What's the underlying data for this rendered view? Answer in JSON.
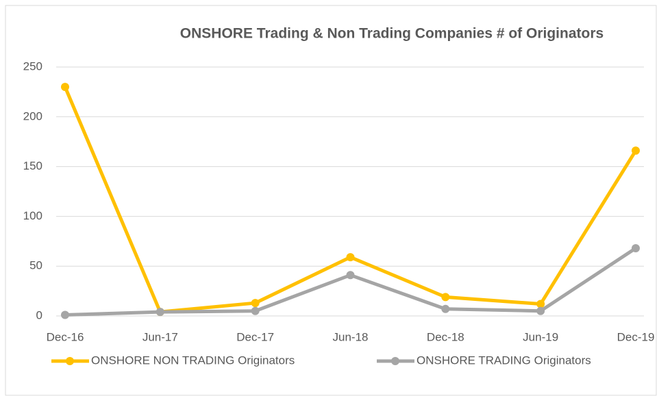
{
  "chart_data": {
    "type": "line",
    "title": "ONSHORE Trading & Non Trading Companies # of Originators",
    "categories": [
      "Dec-16",
      "Jun-17",
      "Dec-17",
      "Jun-18",
      "Dec-18",
      "Jun-19",
      "Dec-19"
    ],
    "series": [
      {
        "name": "ONSHORE NON TRADING Originators",
        "color": "#ffc000",
        "values": [
          230,
          4,
          13,
          59,
          19,
          12,
          166
        ]
      },
      {
        "name": "ONSHORE TRADING Originators",
        "color": "#a5a5a5",
        "values": [
          1,
          4,
          5,
          41,
          7,
          5,
          68
        ]
      }
    ],
    "ylim": [
      0,
      250
    ],
    "yticks": [
      0,
      50,
      100,
      150,
      200,
      250
    ],
    "grid": true,
    "legend": "bottom"
  }
}
